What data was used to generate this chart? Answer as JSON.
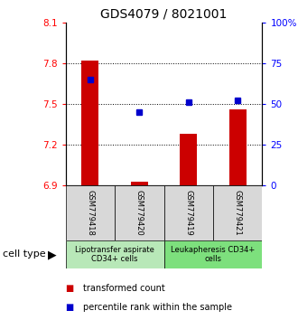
{
  "title": "GDS4079 / 8021001",
  "samples": [
    "GSM779418",
    "GSM779420",
    "GSM779419",
    "GSM779421"
  ],
  "bar_values": [
    7.82,
    6.93,
    7.28,
    7.46
  ],
  "bar_bottom": 6.9,
  "blue_values": [
    65,
    45,
    51,
    52
  ],
  "ylim_left": [
    6.9,
    8.1
  ],
  "ylim_right": [
    0,
    100
  ],
  "yticks_left": [
    6.9,
    7.2,
    7.5,
    7.8,
    8.1
  ],
  "yticks_right": [
    0,
    25,
    50,
    75,
    100
  ],
  "ytick_labels_right": [
    "0",
    "25",
    "50",
    "75",
    "100%"
  ],
  "hlines": [
    7.2,
    7.5,
    7.8
  ],
  "bar_color": "#cc0000",
  "blue_color": "#0000cc",
  "bar_width": 0.35,
  "group1_label": "Lipotransfer aspirate\nCD34+ cells",
  "group2_label": "Leukapheresis CD34+\ncells",
  "group1_color": "#b8e8b8",
  "group2_color": "#7de07d",
  "cell_type_label": "cell type",
  "legend_red_label": "transformed count",
  "legend_blue_label": "percentile rank within the sample",
  "title_fontsize": 10,
  "tick_fontsize": 7.5,
  "sample_fontsize": 6,
  "group_fontsize": 6,
  "legend_fontsize": 7
}
